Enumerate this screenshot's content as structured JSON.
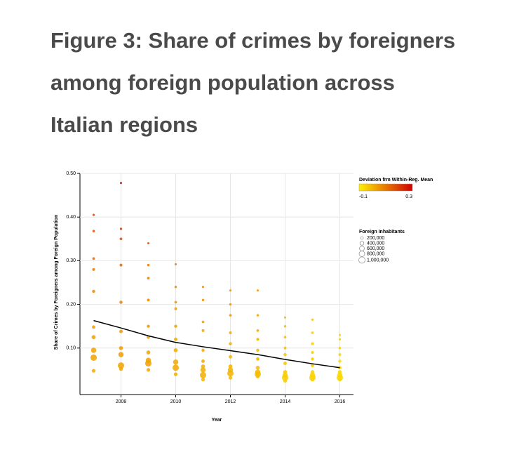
{
  "chart_data": {
    "type": "scatter",
    "title": "Figure 3: Share of crimes by foreigners among foreign population across Italian regions",
    "x_label": "Year",
    "y_label": "Share of Crimes by Foreigners among Foreign Population",
    "xlim": [
      2006.5,
      2016.5
    ],
    "xticks": [
      2008,
      2010,
      2012,
      2014,
      2016
    ],
    "ylim": [
      0,
      0.5
    ],
    "yticks": [
      {
        "value": 0.1,
        "label": "0.10"
      },
      {
        "value": 0.2,
        "label": "0.20"
      },
      {
        "value": 0.3,
        "label": "0.30"
      },
      {
        "value": 0.4,
        "label": "0.40"
      },
      {
        "value": 0.5,
        "label": "0.50"
      }
    ],
    "grid": true,
    "points": {
      "x": [
        2007,
        2007,
        2007,
        2007,
        2007,
        2007,
        2007,
        2007,
        2007,
        2007,
        2008,
        2008,
        2008,
        2008,
        2008,
        2008,
        2008,
        2008,
        2008,
        2008,
        2009,
        2009,
        2009,
        2009,
        2009,
        2009,
        2009,
        2009,
        2009,
        2009,
        2010,
        2010,
        2010,
        2010,
        2010,
        2010,
        2010,
        2010,
        2010,
        2010,
        2011,
        2011,
        2011,
        2011,
        2011,
        2011,
        2011,
        2011,
        2011,
        2011,
        2012,
        2012,
        2012,
        2012,
        2012,
        2012,
        2012,
        2012,
        2012,
        2012,
        2013,
        2013,
        2013,
        2013,
        2013,
        2013,
        2013,
        2013,
        2013,
        2013,
        2014,
        2014,
        2014,
        2014,
        2014,
        2014,
        2014,
        2014,
        2014,
        2014,
        2015,
        2015,
        2015,
        2015,
        2015,
        2015,
        2015,
        2015,
        2015,
        2015,
        2016,
        2016,
        2016,
        2016,
        2016,
        2016,
        2016,
        2016,
        2016,
        2016
      ],
      "y": [
        0.405,
        0.368,
        0.305,
        0.28,
        0.23,
        0.148,
        0.125,
        0.095,
        0.078,
        0.048,
        0.478,
        0.373,
        0.35,
        0.29,
        0.205,
        0.138,
        0.1,
        0.085,
        0.06,
        0.052,
        0.34,
        0.29,
        0.26,
        0.21,
        0.15,
        0.125,
        0.09,
        0.072,
        0.065,
        0.05,
        0.292,
        0.24,
        0.205,
        0.19,
        0.15,
        0.12,
        0.095,
        0.068,
        0.055,
        0.04,
        0.24,
        0.21,
        0.16,
        0.14,
        0.095,
        0.07,
        0.058,
        0.05,
        0.038,
        0.028,
        0.232,
        0.2,
        0.175,
        0.135,
        0.11,
        0.08,
        0.058,
        0.05,
        0.042,
        0.032,
        0.232,
        0.175,
        0.14,
        0.12,
        0.095,
        0.075,
        0.055,
        0.045,
        0.04,
        0.035,
        0.17,
        0.15,
        0.125,
        0.1,
        0.085,
        0.065,
        0.045,
        0.038,
        0.032,
        0.025,
        0.165,
        0.135,
        0.11,
        0.09,
        0.075,
        0.06,
        0.045,
        0.038,
        0.032,
        0.028,
        0.13,
        0.12,
        0.1,
        0.085,
        0.07,
        0.055,
        0.045,
        0.038,
        0.032,
        0.028
      ],
      "deviation": [
        0.2,
        0.17,
        0.12,
        0.1,
        0.07,
        0.04,
        0.04,
        0.03,
        0.03,
        0.02,
        0.3,
        0.19,
        0.17,
        0.13,
        0.08,
        0.05,
        0.04,
        0.04,
        0.03,
        0.03,
        0.17,
        0.11,
        0.09,
        0.07,
        0.05,
        0.04,
        0.03,
        0.03,
        0.03,
        0.02,
        0.1,
        0.07,
        0.05,
        0.04,
        0.03,
        0.02,
        0.02,
        0.02,
        0.02,
        0.01,
        0.08,
        0.06,
        0.04,
        0.03,
        0.02,
        0.02,
        0.01,
        0.01,
        0.01,
        0,
        0.06,
        0.05,
        0.04,
        0.02,
        0.01,
        0,
        0,
        0,
        0,
        -0.01,
        0.05,
        0.03,
        0.02,
        0.01,
        0,
        0,
        -0.01,
        -0.01,
        -0.01,
        -0.02,
        0,
        -0.01,
        -0.02,
        -0.02,
        -0.03,
        -0.03,
        -0.03,
        -0.04,
        -0.04,
        -0.04,
        -0.02,
        -0.03,
        -0.03,
        -0.04,
        -0.04,
        -0.04,
        -0.05,
        -0.05,
        -0.05,
        -0.05,
        -0.04,
        -0.05,
        -0.05,
        -0.05,
        -0.06,
        -0.06,
        -0.06,
        -0.06,
        -0.06,
        -0.06
      ],
      "inhabitants": [
        120000,
        150000,
        180000,
        200000,
        250000,
        300000,
        400000,
        700000,
        1000000,
        350000,
        120000,
        150000,
        180000,
        200000,
        250000,
        300000,
        400000,
        700000,
        1000000,
        350000,
        120000,
        150000,
        180000,
        200000,
        250000,
        300000,
        400000,
        700000,
        1000000,
        350000,
        120000,
        150000,
        180000,
        200000,
        250000,
        300000,
        400000,
        700000,
        1000000,
        350000,
        120000,
        150000,
        180000,
        200000,
        250000,
        300000,
        400000,
        700000,
        1000000,
        350000,
        120000,
        150000,
        180000,
        200000,
        250000,
        300000,
        400000,
        700000,
        1000000,
        350000,
        120000,
        150000,
        180000,
        200000,
        250000,
        300000,
        400000,
        700000,
        1000000,
        350000,
        120000,
        150000,
        180000,
        200000,
        250000,
        300000,
        400000,
        700000,
        1000000,
        350000,
        120000,
        150000,
        180000,
        200000,
        250000,
        300000,
        400000,
        700000,
        1000000,
        350000,
        120000,
        150000,
        180000,
        200000,
        250000,
        300000,
        400000,
        700000,
        1000000,
        350000
      ]
    },
    "trend": {
      "color": "#000000",
      "x": [
        2007,
        2008,
        2009,
        2010,
        2011,
        2012,
        2013,
        2014,
        2015,
        2016
      ],
      "values": [
        0.163,
        0.146,
        0.128,
        0.113,
        0.103,
        0.094,
        0.085,
        0.074,
        0.064,
        0.055
      ]
    },
    "color_legend": {
      "title": "Deviation frm Within-Reg. Mean",
      "range": [
        -0.1,
        0.3
      ],
      "colors": [
        "#fff000",
        "#d00000"
      ]
    },
    "size_legend": {
      "title": "Foreign Inhabitants",
      "values": [
        {
          "value": 200000,
          "label": "200,000"
        },
        {
          "value": 400000,
          "label": "400,000"
        },
        {
          "value": 600000,
          "label": "600,000"
        },
        {
          "value": 800000,
          "label": "800,000"
        },
        {
          "value": 1000000,
          "label": "1,000,000"
        }
      ]
    }
  }
}
